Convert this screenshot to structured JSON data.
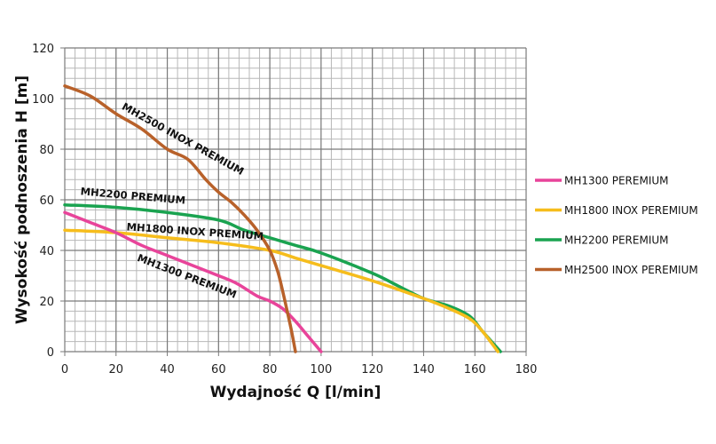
{
  "chart_data": {
    "type": "line",
    "title": "",
    "xlabel": "Wydajność Q [l/min]",
    "ylabel": "Wysokość podnoszenia H [m]",
    "xlim": [
      0,
      180
    ],
    "ylim": [
      0,
      120
    ],
    "x_ticks": [
      0,
      20,
      40,
      60,
      80,
      100,
      120,
      140,
      160,
      180
    ],
    "y_ticks": [
      0,
      20,
      40,
      60,
      80,
      100,
      120
    ],
    "x_minor_step": 4,
    "y_minor_step": 4,
    "grid": true,
    "legend_position": "right",
    "series": [
      {
        "name": "MH1300 PEREMIUM",
        "curve_label": "MH1300 PREMIUM",
        "color": "#e8449a",
        "points": [
          [
            0,
            55
          ],
          [
            10,
            51
          ],
          [
            20,
            47
          ],
          [
            30,
            42
          ],
          [
            40,
            38
          ],
          [
            50,
            34
          ],
          [
            60,
            30
          ],
          [
            67,
            27
          ],
          [
            75,
            22
          ],
          [
            80,
            20
          ],
          [
            85,
            17
          ],
          [
            90,
            12
          ],
          [
            95,
            6
          ],
          [
            100,
            0
          ]
        ]
      },
      {
        "name": "MH1800 INOX PEREMIUM",
        "curve_label": "MH1800 INOX PREMIUM",
        "color": "#f6bd1c",
        "points": [
          [
            0,
            48
          ],
          [
            20,
            47
          ],
          [
            40,
            45
          ],
          [
            60,
            43
          ],
          [
            80,
            40
          ],
          [
            90,
            37
          ],
          [
            100,
            34
          ],
          [
            120,
            28
          ],
          [
            140,
            21
          ],
          [
            150,
            17
          ],
          [
            158,
            13
          ],
          [
            163,
            8
          ],
          [
            169,
            0
          ]
        ]
      },
      {
        "name": "MH2200 PEREMIUM",
        "curve_label": "MH2200 PREMIUM",
        "color": "#1aa350",
        "points": [
          [
            0,
            58
          ],
          [
            20,
            57
          ],
          [
            40,
            55
          ],
          [
            60,
            52
          ],
          [
            70,
            48
          ],
          [
            80,
            45
          ],
          [
            90,
            42
          ],
          [
            100,
            39
          ],
          [
            120,
            31
          ],
          [
            130,
            26
          ],
          [
            140,
            21
          ],
          [
            150,
            18
          ],
          [
            158,
            14
          ],
          [
            163,
            8
          ],
          [
            170,
            0
          ]
        ]
      },
      {
        "name": "MH2500 INOX PEREMIUM",
        "curve_label": "MH2500 INOX PREMIUM",
        "color": "#b8612a",
        "points": [
          [
            0,
            105
          ],
          [
            10,
            101
          ],
          [
            20,
            94
          ],
          [
            30,
            88
          ],
          [
            40,
            80
          ],
          [
            48,
            76
          ],
          [
            55,
            68
          ],
          [
            60,
            63
          ],
          [
            65,
            59
          ],
          [
            70,
            54
          ],
          [
            75,
            48
          ],
          [
            80,
            40
          ],
          [
            83,
            32
          ],
          [
            85,
            24
          ],
          [
            87,
            15
          ],
          [
            88.5,
            8
          ],
          [
            90,
            0
          ]
        ]
      }
    ]
  }
}
